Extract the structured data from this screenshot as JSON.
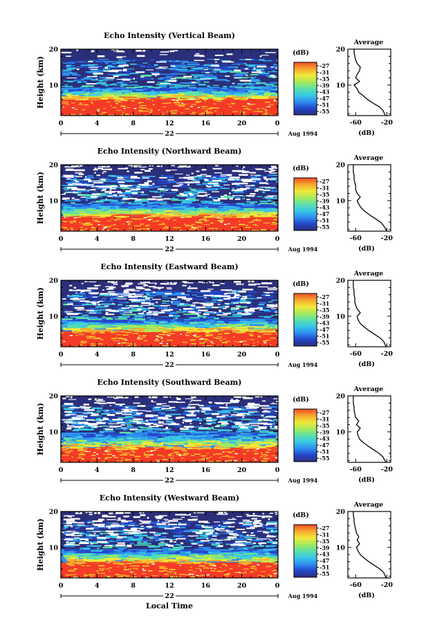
{
  "figure": {
    "ylabel": "Height (km)",
    "xlabel": "Local Time",
    "date_day": "22",
    "date_label": "Aug 1994",
    "units": "(dB)",
    "avg_title": "Average",
    "avg_xlabel": "(dB)"
  },
  "colors": {
    "scale": [
      "#2b2f7a",
      "#2446c8",
      "#2f8ff0",
      "#39c8e6",
      "#5de0a8",
      "#a6ea5a",
      "#f2e83a",
      "#f6a82e",
      "#f24a28"
    ],
    "low": "#2b2f7a",
    "high": "#f43b26"
  },
  "chart_data": [
    {
      "type": "heatmap",
      "title": "Echo Intensity (Vertical Beam)",
      "x_ticks": [
        "0",
        "4",
        "8",
        "12",
        "16",
        "20",
        "0"
      ],
      "y_ticks": [
        "10",
        "20"
      ],
      "xlim": [
        0,
        24
      ],
      "ylim": [
        1.5,
        20
      ],
      "colorbar_ticks": [
        "-27",
        "-31",
        "-35",
        "-39",
        "-43",
        "-47",
        "-51",
        "-55"
      ],
      "layers_km": {
        "red_top": 6.2,
        "transition_top": 9.3,
        "blue_top": 20
      },
      "average_profile": {
        "x_ticks": [
          "-60",
          "-20"
        ],
        "y_ticks": [
          "10",
          "20"
        ],
        "height_km": [
          1.5,
          3,
          4,
          5,
          6,
          7,
          8,
          9,
          10,
          11,
          12,
          13,
          14,
          15,
          16,
          17,
          18,
          19,
          20
        ],
        "db": [
          -22,
          -25,
          -30,
          -38,
          -45,
          -50,
          -56,
          -58,
          -62,
          -55,
          -60,
          -58,
          -55,
          -54,
          -58,
          -60,
          -61,
          -62,
          -62
        ]
      }
    },
    {
      "type": "heatmap",
      "title": "Echo Intensity (Northward Beam)",
      "x_ticks": [
        "0",
        "4",
        "8",
        "12",
        "16",
        "20",
        "0"
      ],
      "y_ticks": [
        "10",
        "20"
      ],
      "xlim": [
        0,
        24
      ],
      "ylim": [
        1.5,
        20
      ],
      "colorbar_ticks": [
        "-27",
        "-31",
        "-35",
        "-39",
        "-43",
        "-47",
        "-51",
        "-55"
      ],
      "layers_km": {
        "red_top": 5.6,
        "transition_top": 9.2,
        "blue_top": 20
      },
      "average_profile": {
        "x_ticks": [
          "-60",
          "-20"
        ],
        "y_ticks": [
          "10",
          "20"
        ],
        "height_km": [
          1.5,
          3,
          4,
          5,
          6,
          7,
          8,
          9,
          10,
          11,
          12,
          13,
          14,
          15,
          16,
          17,
          18,
          19,
          20
        ],
        "db": [
          -20,
          -24,
          -28,
          -35,
          -42,
          -48,
          -53,
          -56,
          -58,
          -54,
          -58,
          -60,
          -60,
          -61,
          -62,
          -62,
          -63,
          -63,
          -63
        ]
      }
    },
    {
      "type": "heatmap",
      "title": "Echo Intensity (Eastward Beam)",
      "x_ticks": [
        "0",
        "4",
        "8",
        "12",
        "16",
        "20",
        "0"
      ],
      "y_ticks": [
        "10",
        "20"
      ],
      "xlim": [
        0,
        24
      ],
      "ylim": [
        1.5,
        20
      ],
      "colorbar_ticks": [
        "-27",
        "-31",
        "-35",
        "-39",
        "-43",
        "-47",
        "-51",
        "-55"
      ],
      "layers_km": {
        "red_top": 5.8,
        "transition_top": 9.3,
        "blue_top": 20
      },
      "average_profile": {
        "x_ticks": [
          "-60",
          "-20"
        ],
        "y_ticks": [
          "10",
          "20"
        ],
        "height_km": [
          1.5,
          3,
          4,
          5,
          6,
          7,
          8,
          9,
          10,
          11,
          12,
          13,
          14,
          15,
          16,
          17,
          18,
          19,
          20
        ],
        "db": [
          -21,
          -24,
          -29,
          -36,
          -43,
          -49,
          -54,
          -57,
          -58,
          -54,
          -58,
          -60,
          -61,
          -61,
          -62,
          -62,
          -63,
          -63,
          -63
        ]
      }
    },
    {
      "type": "heatmap",
      "title": "Echo Intensity (Southward Beam)",
      "x_ticks": [
        "0",
        "4",
        "8",
        "12",
        "16",
        "20",
        "0"
      ],
      "y_ticks": [
        "10",
        "20"
      ],
      "xlim": [
        0,
        24
      ],
      "ylim": [
        1.5,
        20
      ],
      "colorbar_ticks": [
        "-27",
        "-31",
        "-35",
        "-39",
        "-43",
        "-47",
        "-51",
        "-55"
      ],
      "layers_km": {
        "red_top": 5.5,
        "transition_top": 9.8,
        "blue_top": 20
      },
      "average_profile": {
        "x_ticks": [
          "-60",
          "-20"
        ],
        "y_ticks": [
          "10",
          "20"
        ],
        "height_km": [
          1.5,
          3,
          4,
          5,
          6,
          7,
          8,
          9,
          10,
          11,
          12,
          13,
          14,
          15,
          16,
          17,
          18,
          19,
          20
        ],
        "db": [
          -21,
          -25,
          -30,
          -37,
          -44,
          -50,
          -55,
          -57,
          -58,
          -54,
          -59,
          -56,
          -60,
          -61,
          -62,
          -62,
          -63,
          -63,
          -63
        ]
      }
    },
    {
      "type": "heatmap",
      "title": "Echo Intensity (Westward Beam)",
      "x_ticks": [
        "0",
        "4",
        "8",
        "12",
        "16",
        "20",
        "0"
      ],
      "y_ticks": [
        "10",
        "20"
      ],
      "xlim": [
        0,
        24
      ],
      "ylim": [
        1.5,
        20
      ],
      "colorbar_ticks": [
        "-27",
        "-31",
        "-35",
        "-39",
        "-43",
        "-47",
        "-51",
        "-55"
      ],
      "layers_km": {
        "red_top": 5.8,
        "transition_top": 9.5,
        "blue_top": 20
      },
      "average_profile": {
        "x_ticks": [
          "-60",
          "-20"
        ],
        "y_ticks": [
          "10",
          "20"
        ],
        "height_km": [
          1.5,
          3,
          4,
          5,
          6,
          7,
          8,
          9,
          10,
          11,
          12,
          13,
          14,
          15,
          16,
          17,
          18,
          19,
          20
        ],
        "db": [
          -21,
          -24,
          -29,
          -36,
          -43,
          -49,
          -54,
          -57,
          -59,
          -55,
          -58,
          -56,
          -59,
          -60,
          -61,
          -62,
          -62,
          -63,
          -63
        ]
      }
    }
  ]
}
